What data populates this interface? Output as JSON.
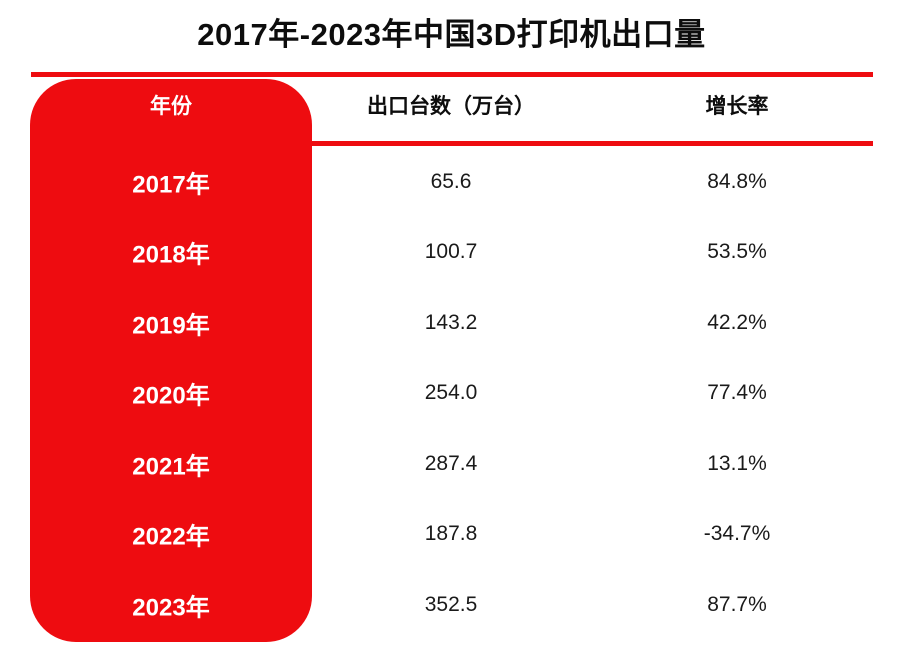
{
  "title": "2017年-2023年中国3D打印机出口量",
  "colors": {
    "accent_red": "#ee0c10",
    "title_black": "#0d0d0d",
    "value_text": "#1a1a1a",
    "panel_text": "#ffffff",
    "background": "#ffffff"
  },
  "table": {
    "headers": {
      "year": "年份",
      "exports": "出口台数（万台）",
      "growth": "增长率"
    },
    "rows": [
      {
        "year": "2017年",
        "exports": "65.6",
        "growth": "84.8%"
      },
      {
        "year": "2018年",
        "exports": "100.7",
        "growth": "53.5%"
      },
      {
        "year": "2019年",
        "exports": "143.2",
        "growth": "42.2%"
      },
      {
        "year": "2020年",
        "exports": "254.0",
        "growth": "77.4%"
      },
      {
        "year": "2021年",
        "exports": "287.4",
        "growth": "13.1%"
      },
      {
        "year": "2022年",
        "exports": "187.8",
        "growth": "-34.7%"
      },
      {
        "year": "2023年",
        "exports": "352.5",
        "growth": "87.7%"
      }
    ]
  },
  "chart_data": {
    "type": "table",
    "title": "2017年-2023年中国3D打印机出口量",
    "columns": [
      "年份",
      "出口台数（万台）",
      "增长率"
    ],
    "years": [
      "2017年",
      "2018年",
      "2019年",
      "2020年",
      "2021年",
      "2022年",
      "2023年"
    ],
    "exports_wan_units": [
      65.6,
      100.7,
      143.2,
      254.0,
      287.4,
      187.8,
      352.5
    ],
    "growth_rate_pct": [
      84.8,
      53.5,
      42.2,
      77.4,
      13.1,
      -34.7,
      87.7
    ]
  }
}
